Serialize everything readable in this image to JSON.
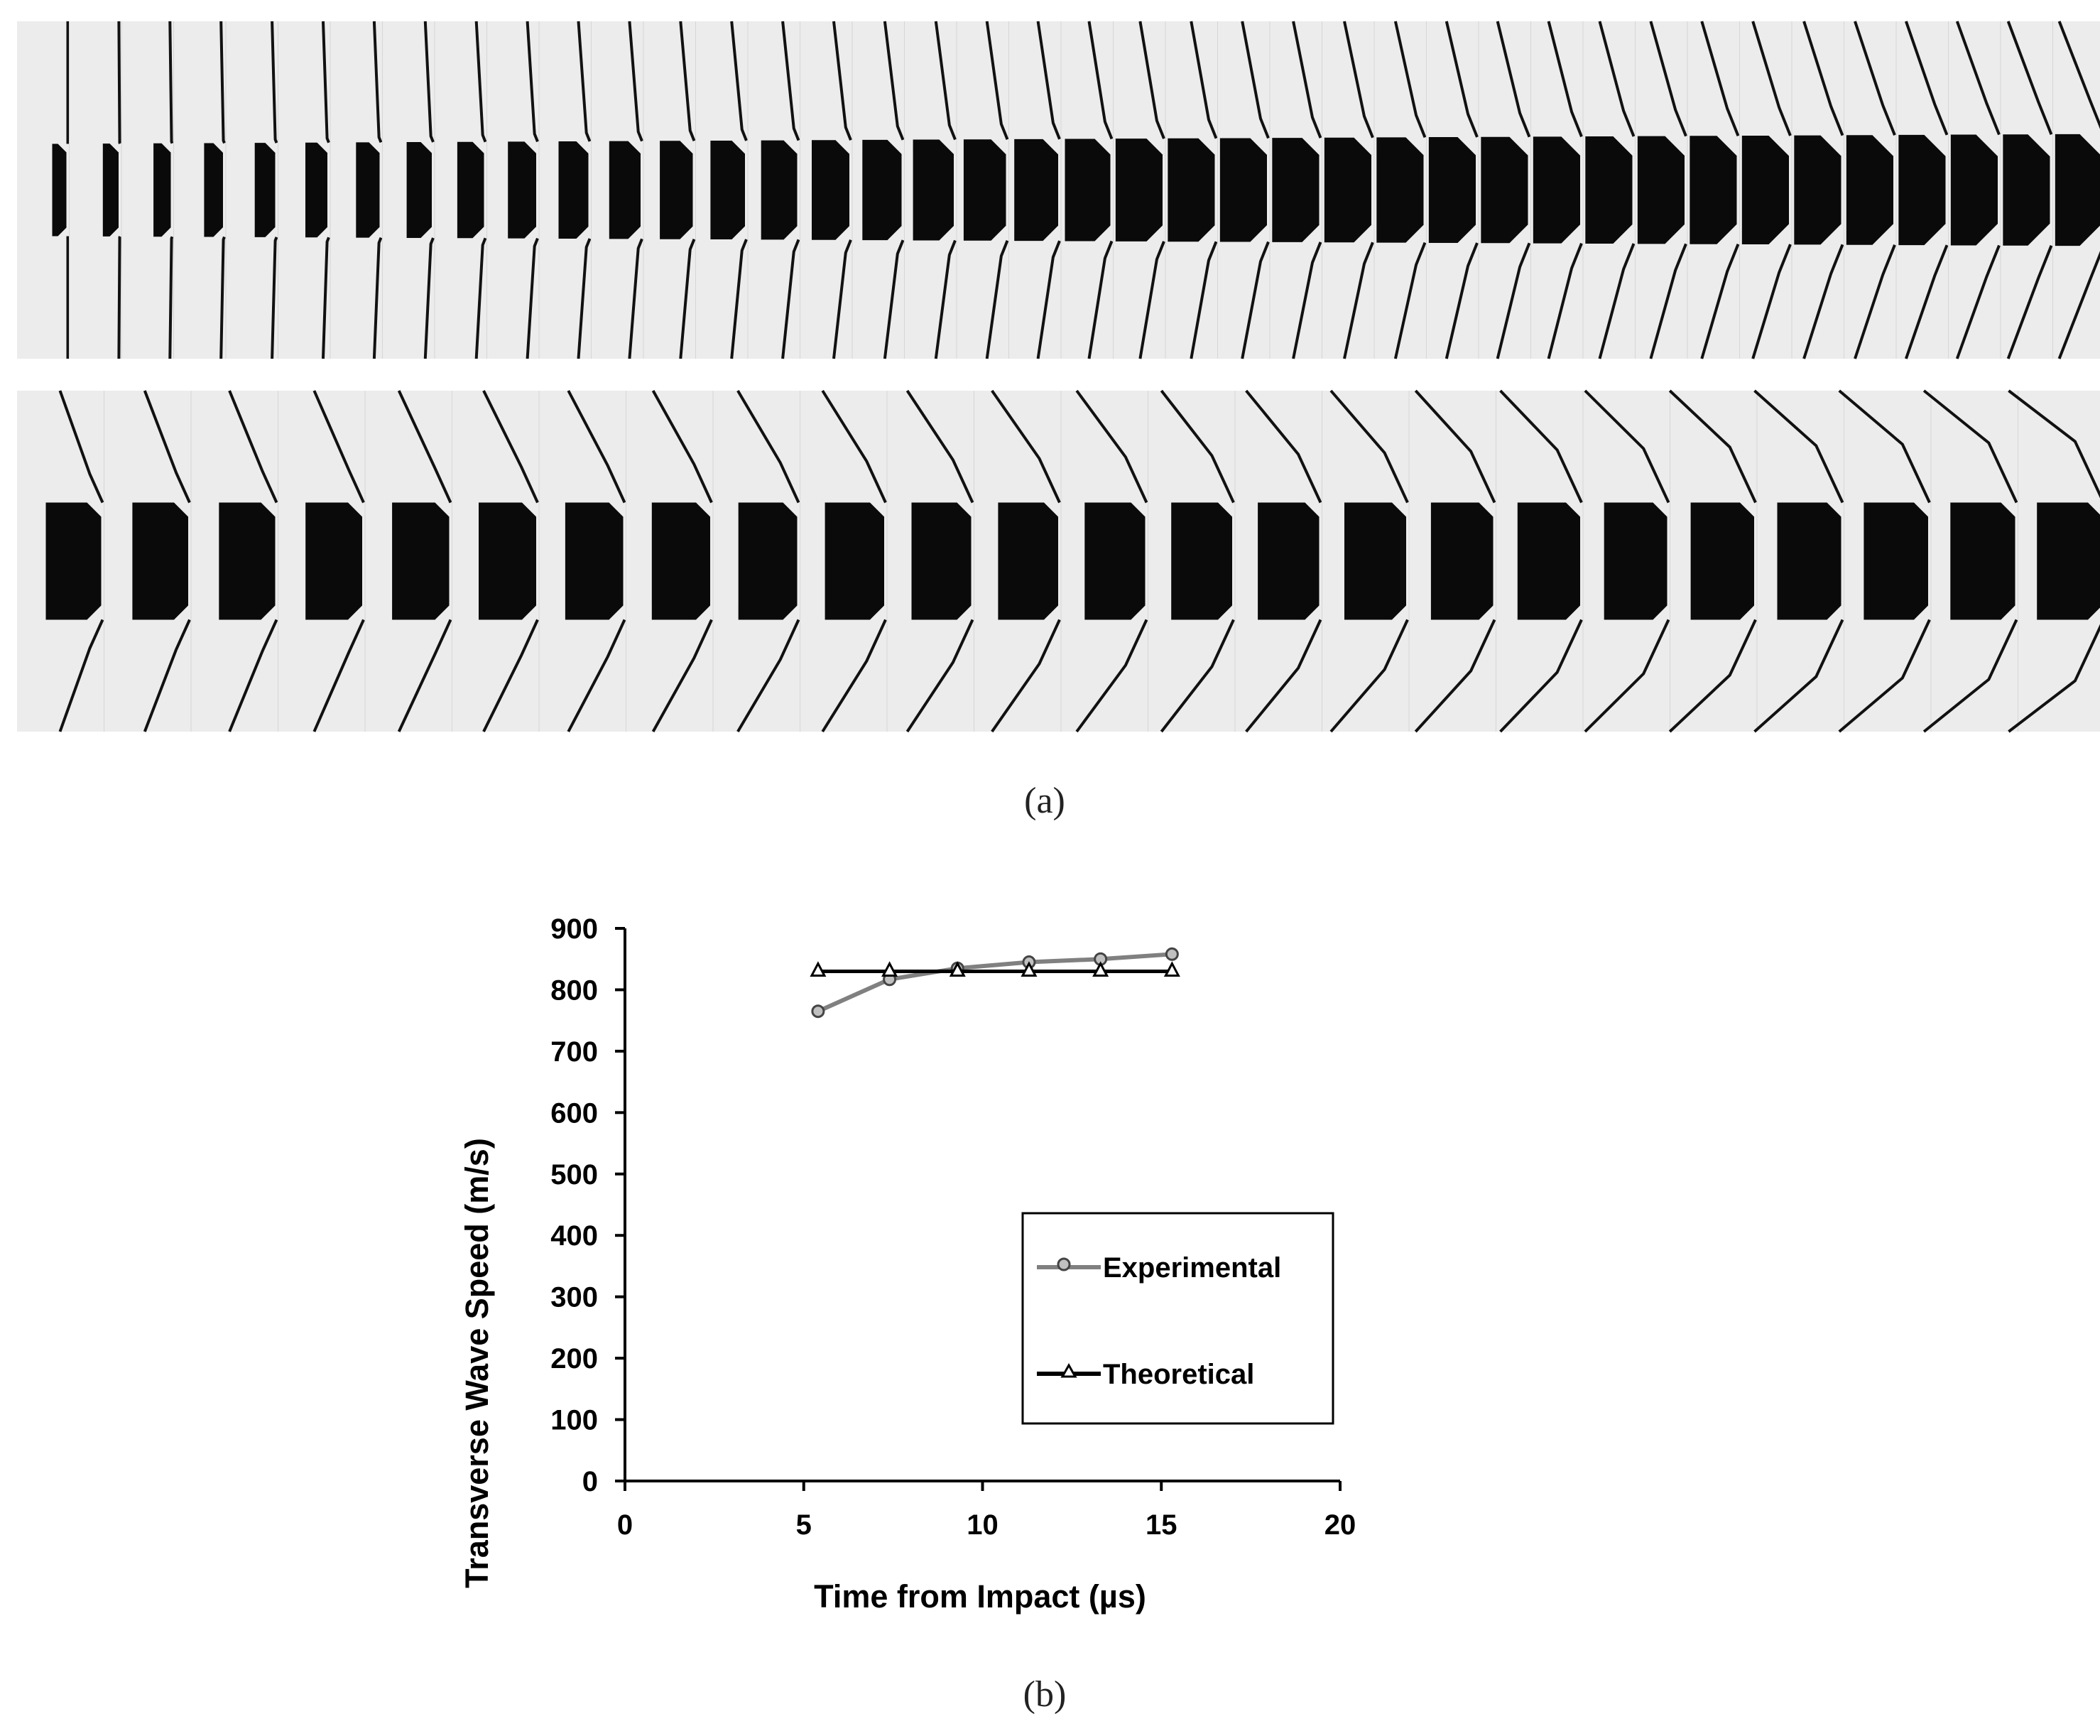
{
  "figure": {
    "panel_a_caption": "(a)",
    "panel_b_caption": "(b)",
    "panel_a_description_icon": "high-speed-photo-frames-icon"
  },
  "chart_data": {
    "type": "line",
    "title": "",
    "xlabel": "Time from Impact (µs)",
    "ylabel": "Transverse Wave Speed (m/s)",
    "xlim": [
      0,
      20
    ],
    "ylim": [
      0,
      900
    ],
    "xticks": [
      0,
      5,
      10,
      15,
      20
    ],
    "yticks": [
      0,
      100,
      200,
      300,
      400,
      500,
      600,
      700,
      800,
      900
    ],
    "grid": false,
    "legend_position": "center-right",
    "series": [
      {
        "name": "Experimental",
        "marker": "circle",
        "color": "#808080",
        "x": [
          5.4,
          7.4,
          9.3,
          11.3,
          13.3,
          15.3
        ],
        "y": [
          765,
          817,
          835,
          845,
          850,
          858
        ]
      },
      {
        "name": "Theoretical",
        "marker": "triangle",
        "color": "#000000",
        "x": [
          5.4,
          7.4,
          9.3,
          11.3,
          13.3,
          15.3
        ],
        "y": [
          830,
          830,
          830,
          830,
          830,
          830
        ]
      }
    ]
  }
}
